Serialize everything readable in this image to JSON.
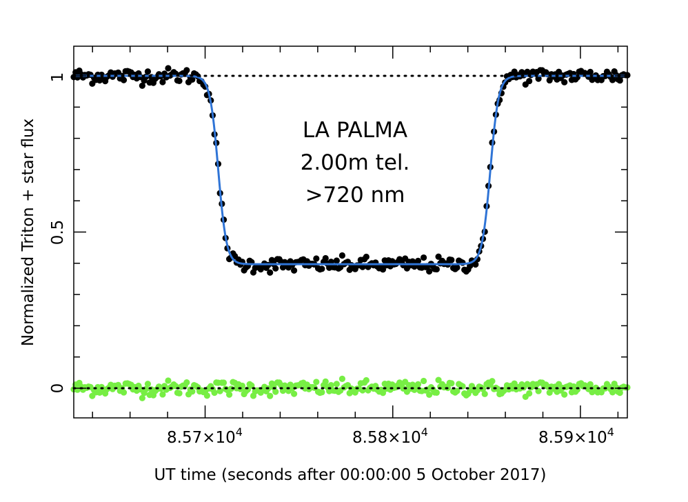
{
  "chart_data": {
    "type": "scatter",
    "xlabel": "UT time (seconds after 00:00:00 5 October 2017)",
    "ylabel": "Normalized Triton + star flux",
    "xlim": [
      85630,
      85925
    ],
    "ylim": [
      -0.095,
      1.095
    ],
    "x_ticks": [
      {
        "value": 85700,
        "mantissa": "8.57",
        "exponent": "4"
      },
      {
        "value": 85800,
        "mantissa": "8.58",
        "exponent": "4"
      },
      {
        "value": 85900,
        "mantissa": "8.59",
        "exponent": "4"
      }
    ],
    "y_ticks": [
      {
        "value": 0,
        "label": "0"
      },
      {
        "value": 0.5,
        "label": "0.5"
      },
      {
        "value": 1,
        "label": "1"
      }
    ],
    "x_minor_step": 20,
    "y_minor_step": 0.1,
    "annotations": [
      "LA PALMA",
      "2.00m tel.",
      ">720 nm"
    ],
    "reference_lines": [
      1,
      0
    ],
    "series": [
      {
        "kind": "points",
        "color": "#000000",
        "model": {
          "ingress": 85707,
          "egress": 85852,
          "top": 1.0,
          "bottom": 0.395,
          "width": 2.2
        },
        "x_range": [
          85630,
          85925
        ],
        "n": 300,
        "noise": 0.012
      },
      {
        "kind": "model-line",
        "color": "#2f74d6",
        "model": {
          "ingress": 85707,
          "egress": 85852,
          "top": 1.0,
          "bottom": 0.397,
          "width": 2.2
        }
      },
      {
        "kind": "residual-points",
        "color": "#77ee44",
        "x_range": [
          85630,
          85925
        ],
        "n": 300,
        "noise": 0.012,
        "center": 0
      }
    ],
    "colors": {
      "axes": "#000000",
      "data": "#000000",
      "fit": "#2f74d6",
      "residuals": "#77ee44"
    }
  }
}
